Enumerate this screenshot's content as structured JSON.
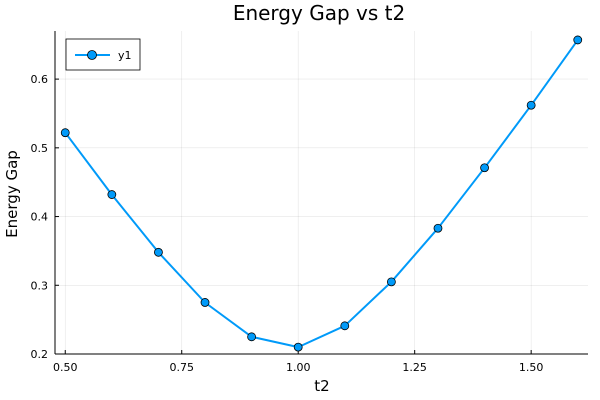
{
  "chart_data": {
    "type": "line",
    "title": "Energy Gap vs t2",
    "xlabel": "t2",
    "ylabel": "Energy Gap",
    "xlim": [
      0.478,
      1.622
    ],
    "ylim": [
      0.2,
      0.67
    ],
    "xticks": [
      0.5,
      0.75,
      1.0,
      1.25,
      1.5
    ],
    "xtick_labels": [
      "0.50",
      "0.75",
      "1.00",
      "1.25",
      "1.50"
    ],
    "yticks": [
      0.2,
      0.3,
      0.4,
      0.5,
      0.6
    ],
    "ytick_labels": [
      "0.2",
      "0.3",
      "0.4",
      "0.5",
      "0.6"
    ],
    "grid": true,
    "legend_position": "top-left",
    "series": [
      {
        "name": "y1",
        "color": "#009af9",
        "marker": "circle",
        "x": [
          0.5,
          0.6,
          0.7,
          0.8,
          0.9,
          1.0,
          1.1,
          1.2,
          1.3,
          1.4,
          1.5,
          1.6
        ],
        "y": [
          0.522,
          0.432,
          0.348,
          0.275,
          0.225,
          0.21,
          0.241,
          0.305,
          0.383,
          0.471,
          0.562,
          0.657
        ]
      }
    ]
  }
}
